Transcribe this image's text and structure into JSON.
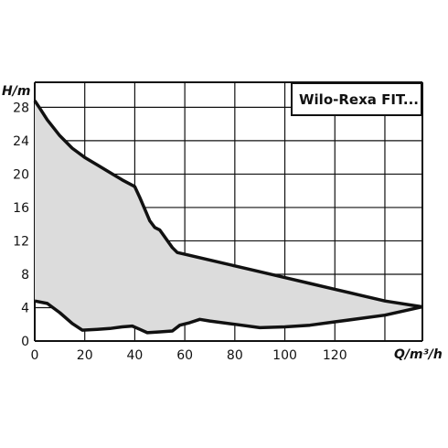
{
  "chart_data": {
    "type": "area",
    "title": "Wilo-Rexa FIT...",
    "xlabel": "Q/m³/h",
    "ylabel": "H/m",
    "xlim": [
      0,
      155
    ],
    "ylim": [
      0,
      31
    ],
    "x_ticks": [
      0,
      20,
      40,
      60,
      80,
      100,
      120
    ],
    "y_ticks": [
      0,
      4,
      8,
      12,
      16,
      20,
      24,
      28
    ],
    "x_grid": [
      0,
      20,
      40,
      60,
      80,
      100,
      120,
      140,
      155
    ],
    "y_grid": [
      0,
      4,
      8,
      12,
      16,
      20,
      24,
      28,
      31
    ],
    "grid": true,
    "fill_color": "#dcdcdc",
    "line_color": "#111111",
    "series": [
      {
        "role": "upper",
        "points": [
          [
            0,
            28.8
          ],
          [
            2,
            27.9
          ],
          [
            5,
            26.5
          ],
          [
            10,
            24.6
          ],
          [
            15,
            23.1
          ],
          [
            20,
            22.0
          ],
          [
            25,
            21.1
          ],
          [
            30,
            20.2
          ],
          [
            35,
            19.3
          ],
          [
            40,
            18.5
          ],
          [
            42,
            17.2
          ],
          [
            44,
            15.8
          ],
          [
            46,
            14.4
          ],
          [
            48,
            13.6
          ],
          [
            50,
            13.3
          ],
          [
            55,
            11.2
          ],
          [
            57,
            10.6
          ],
          [
            60,
            10.4
          ],
          [
            70,
            9.7
          ],
          [
            80,
            9.0
          ],
          [
            90,
            8.3
          ],
          [
            100,
            7.6
          ],
          [
            110,
            6.9
          ],
          [
            120,
            6.2
          ],
          [
            130,
            5.5
          ],
          [
            140,
            4.8
          ],
          [
            155,
            4.1
          ]
        ]
      },
      {
        "role": "lower",
        "points": [
          [
            0,
            4.8
          ],
          [
            5,
            4.5
          ],
          [
            10,
            3.4
          ],
          [
            15,
            2.1
          ],
          [
            19,
            1.3
          ],
          [
            25,
            1.4
          ],
          [
            30,
            1.5
          ],
          [
            35,
            1.7
          ],
          [
            39,
            1.8
          ],
          [
            42,
            1.4
          ],
          [
            45,
            1.0
          ],
          [
            50,
            1.1
          ],
          [
            55,
            1.2
          ],
          [
            58,
            1.9
          ],
          [
            62,
            2.2
          ],
          [
            66,
            2.6
          ],
          [
            70,
            2.4
          ],
          [
            80,
            2.0
          ],
          [
            90,
            1.6
          ],
          [
            100,
            1.7
          ],
          [
            110,
            1.9
          ],
          [
            120,
            2.3
          ],
          [
            130,
            2.7
          ],
          [
            140,
            3.1
          ],
          [
            155,
            4.1
          ]
        ]
      }
    ]
  }
}
